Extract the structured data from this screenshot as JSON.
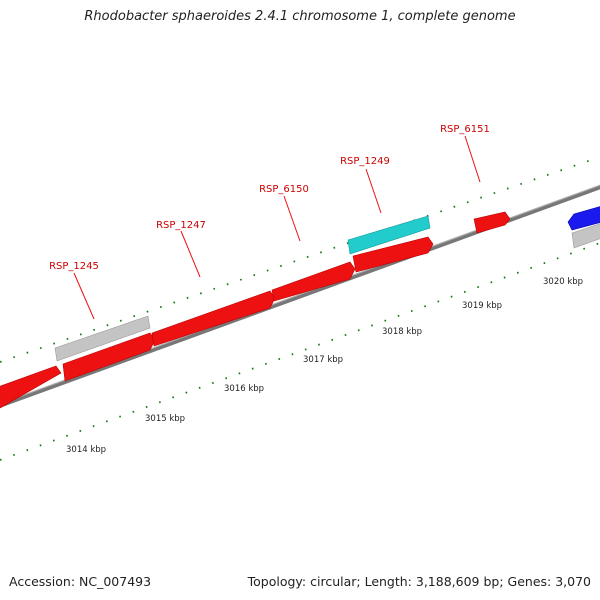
{
  "title": "Rhodobacter sphaeroides 2.4.1 chromosome 1, complete genome",
  "footer": {
    "accession": "Accession: NC_007493",
    "summary": "Topology: circular; Length: 3,188,609 bp; Genes: 3,070"
  },
  "colors": {
    "forward_gene": "#ee1111",
    "reverse_gene": "#1a1aee",
    "highlight_gene": "#22cccc",
    "pseudo_gene": "#c4c4c4",
    "backbone": "#8a8a8a",
    "tick": "#1a7a1a",
    "label_text": "#cc0000"
  },
  "genes": [
    {
      "name": "RSP_1245"
    },
    {
      "name": "RSP_1247"
    },
    {
      "name": "RSP_6150"
    },
    {
      "name": "RSP_1249"
    },
    {
      "name": "RSP_6151"
    }
  ],
  "scale": {
    "ticks": [
      "3014 kbp",
      "3015 kbp",
      "3016 kbp",
      "3017 kbp",
      "3018 kbp",
      "3019 kbp",
      "3020 kbp"
    ]
  }
}
